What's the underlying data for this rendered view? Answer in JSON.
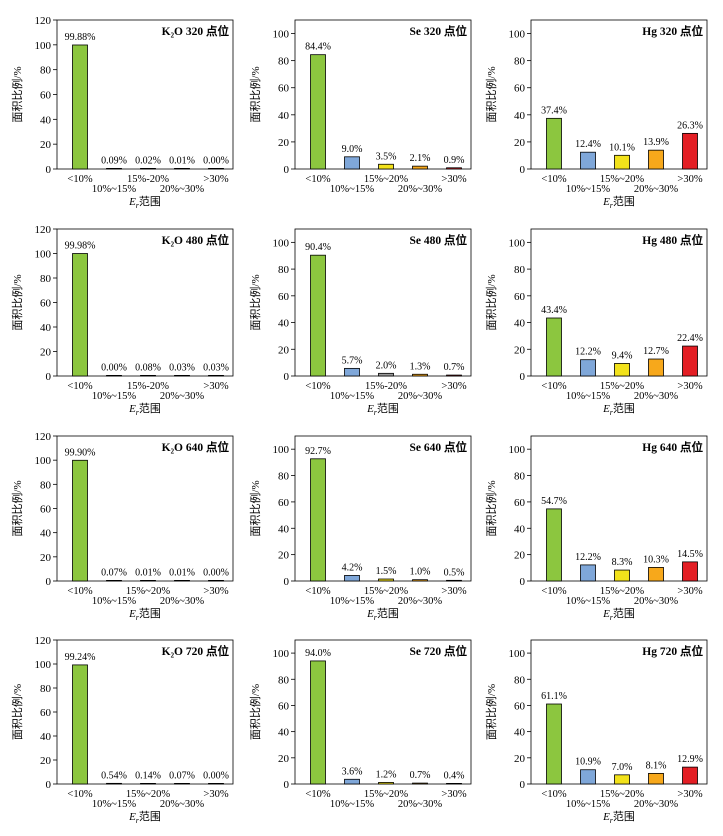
{
  "palette": {
    "<10%": "#8cc63f",
    "10%~15%": "#7fa7d9",
    "15%~20%": "#f2e21b",
    "20%~30%": "#f7a81b",
    ">30%": "#e31e24"
  },
  "chart_data": [
    {
      "type": "bar",
      "title": "K₂O 320 点位",
      "element": "K₂O",
      "points": "320 点位",
      "ylabel": "面积比例/%",
      "xlabel": "E_r范围",
      "ylim": [
        0,
        120
      ],
      "yticks": [
        0,
        20,
        40,
        60,
        80,
        100,
        120
      ],
      "categories": [
        "<10%",
        "10%~15%",
        "15%-20%",
        "20%~30%",
        ">30%"
      ],
      "values": [
        99.88,
        0.09,
        0.02,
        0.01,
        0.0
      ],
      "labels": [
        "99.88%",
        "0.09%",
        "0.02%",
        "0.01%",
        "0.00%"
      ]
    },
    {
      "type": "bar",
      "title": "Se 320 点位",
      "element": "Se",
      "points": "320 点位",
      "ylabel": "面积比例/%",
      "xlabel": "",
      "ylim": [
        0,
        110
      ],
      "yticks": [
        0,
        20,
        40,
        60,
        80,
        100
      ],
      "categories": [
        "<10%",
        "10%~15%",
        "15%~20%",
        "20%~30%",
        ">30%"
      ],
      "values": [
        84.4,
        9.0,
        3.5,
        2.1,
        0.9
      ],
      "labels": [
        "84.4%",
        "9.0%",
        "3.5%",
        "2.1%",
        "0.9%"
      ]
    },
    {
      "type": "bar",
      "title": "Hg 320 点位",
      "element": "Hg",
      "points": "320 点位",
      "ylabel": "面积比例/%",
      "xlabel": "E_r范围",
      "ylim": [
        0,
        110
      ],
      "yticks": [
        0,
        20,
        40,
        60,
        80,
        100
      ],
      "categories": [
        "<10%",
        "10%~15%",
        "15%~20%",
        "20%~30%",
        ">30%"
      ],
      "values": [
        37.4,
        12.4,
        10.1,
        13.9,
        26.3
      ],
      "labels": [
        "37.4%",
        "12.4%",
        "10.1%",
        "13.9%",
        "26.3%"
      ]
    },
    {
      "type": "bar",
      "title": "K₂O 480 点位",
      "element": "K₂O",
      "points": "480 点位",
      "ylabel": "面积比例/%",
      "xlabel": "E_r范围",
      "ylim": [
        0,
        120
      ],
      "yticks": [
        0,
        20,
        40,
        60,
        80,
        100,
        120
      ],
      "categories": [
        "<10%",
        "10%~15%",
        "15%-20%",
        "20%~30%",
        ">30%"
      ],
      "values": [
        99.98,
        0.0,
        0.08,
        0.03,
        0.03
      ],
      "labels": [
        "99.98%",
        "0.00%",
        "0.08%",
        "0.03%",
        "0.03%"
      ]
    },
    {
      "type": "bar",
      "title": "Se 480 点位",
      "element": "Se",
      "points": "480 点位",
      "ylabel": "面积比例/%",
      "xlabel": "E_r范围",
      "ylim": [
        0,
        110
      ],
      "yticks": [
        0,
        20,
        40,
        60,
        80,
        100
      ],
      "categories": [
        "<10%",
        "10%~15%",
        "15%-20%",
        "20%~30%",
        ">30%"
      ],
      "values": [
        90.4,
        5.7,
        2.0,
        1.3,
        0.7
      ],
      "labels": [
        "90.4%",
        "5.7%",
        "2.0%",
        "1.3%",
        "0.7%"
      ]
    },
    {
      "type": "bar",
      "title": "Hg 480 点位",
      "element": "Hg",
      "points": "480 点位",
      "ylabel": "面积比例/%",
      "xlabel": "E_r范围",
      "ylim": [
        0,
        110
      ],
      "yticks": [
        0,
        20,
        40,
        60,
        80,
        100
      ],
      "categories": [
        "<10%",
        "10%~15%",
        "15%~20%",
        "20%~30%",
        ">30%"
      ],
      "values": [
        43.4,
        12.2,
        9.4,
        12.7,
        22.4
      ],
      "labels": [
        "43.4%",
        "12.2%",
        "9.4%",
        "12.7%",
        "22.4%"
      ]
    },
    {
      "type": "bar",
      "title": "K₂O 640 点位",
      "element": "K₂O",
      "points": "640 点位",
      "ylabel": "面积比例/%",
      "xlabel": "E_r范围",
      "ylim": [
        0,
        120
      ],
      "yticks": [
        0,
        20,
        40,
        60,
        80,
        100,
        120
      ],
      "categories": [
        "<10%",
        "10%~15%",
        "15%~20%",
        "20%~30%",
        ">30%"
      ],
      "values": [
        99.9,
        0.07,
        0.01,
        0.01,
        0.0
      ],
      "labels": [
        "99.90%",
        "0.07%",
        "0.01%",
        "0.01%",
        "0.00%"
      ]
    },
    {
      "type": "bar",
      "title": "Se 640 点位",
      "element": "Se",
      "points": "640 点位",
      "ylabel": "面积比例/%",
      "xlabel": "E_r范围",
      "ylim": [
        0,
        110
      ],
      "yticks": [
        0,
        20,
        40,
        60,
        80,
        100
      ],
      "categories": [
        "<10%",
        "10%~15%",
        "15%~20%",
        "20%~30%",
        ">30%"
      ],
      "values": [
        92.7,
        4.2,
        1.5,
        1.0,
        0.5
      ],
      "labels": [
        "92.7%",
        "4.2%",
        "1.5%",
        "1.0%",
        "0.5%"
      ]
    },
    {
      "type": "bar",
      "title": "Hg 640 点位",
      "element": "Hg",
      "points": "640 点位",
      "ylabel": "面积比例/%",
      "xlabel": "E_r范围",
      "ylim": [
        0,
        110
      ],
      "yticks": [
        0,
        20,
        40,
        60,
        80,
        100
      ],
      "categories": [
        "<10%",
        "10%~15%",
        "15%~20%",
        "20%~30%",
        ">30%"
      ],
      "values": [
        54.7,
        12.2,
        8.3,
        10.3,
        14.5
      ],
      "labels": [
        "54.7%",
        "12.2%",
        "8.3%",
        "10.3%",
        "14.5%"
      ]
    },
    {
      "type": "bar",
      "title": "K₂O 720 点位",
      "element": "K₂O",
      "points": "720 点位",
      "ylabel": "面积比例/%",
      "xlabel": "E_r范围",
      "ylim": [
        0,
        120
      ],
      "yticks": [
        0,
        20,
        40,
        60,
        80,
        100,
        120
      ],
      "categories": [
        "<10%",
        "10%~15%",
        "15%~20%",
        "20%~30%",
        ">30%"
      ],
      "values": [
        99.24,
        0.54,
        0.14,
        0.07,
        0.0
      ],
      "labels": [
        "99.24%",
        "0.54%",
        "0.14%",
        "0.07%",
        "0.00%"
      ]
    },
    {
      "type": "bar",
      "title": "Se 720 点位",
      "element": "Se",
      "points": "720 点位",
      "ylabel": "面积比例/%",
      "xlabel": "",
      "ylim": [
        0,
        110
      ],
      "yticks": [
        0,
        20,
        40,
        60,
        80,
        100
      ],
      "categories": [
        "<10%",
        "10%~15%",
        "15%~20%",
        "20%~30%",
        ">30%"
      ],
      "values": [
        94.0,
        3.6,
        1.2,
        0.7,
        0.4
      ],
      "labels": [
        "94.0%",
        "3.6%",
        "1.2%",
        "0.7%",
        "0.4%"
      ]
    },
    {
      "type": "bar",
      "title": "Hg 720 点位",
      "element": "Hg",
      "points": "720 点位",
      "ylabel": "面积比例/%",
      "xlabel": "E_r范围",
      "ylim": [
        0,
        110
      ],
      "yticks": [
        0,
        20,
        40,
        60,
        80,
        100
      ],
      "categories": [
        "<10%",
        "10%~15%",
        "15%~20%",
        "20%~30%",
        ">30%"
      ],
      "values": [
        61.1,
        10.9,
        7.0,
        8.1,
        12.9
      ],
      "labels": [
        "61.1%",
        "10.9%",
        "7.0%",
        "8.1%",
        "12.9%"
      ]
    }
  ]
}
